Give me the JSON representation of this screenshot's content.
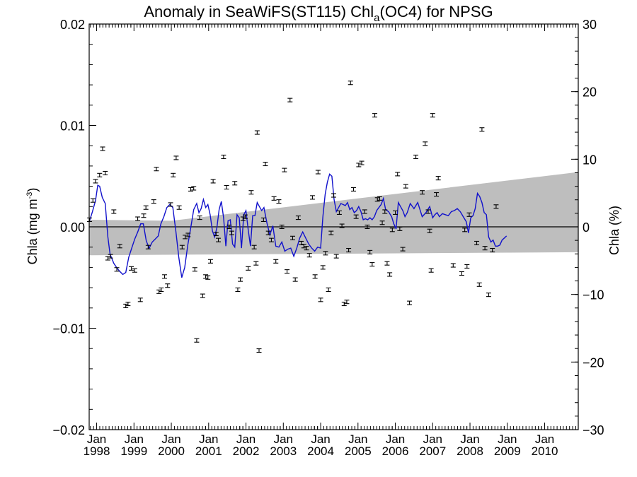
{
  "chart_data": {
    "type": "scatter",
    "title_main": "Anomaly in SeaWiFS(ST115) Chl",
    "title_sub": "a",
    "title_tail": "(OC4) for NPSG",
    "ylabel_left_main": "Chla (mg m",
    "ylabel_left_sup": "-3",
    "ylabel_left_close": ")",
    "ylabel_right": "Chla (%)",
    "ylim_left": [
      -0.02,
      0.02
    ],
    "ylim_right": [
      -30,
      30
    ],
    "xlim": [
      1997.8,
      2010.9
    ],
    "yticks_left": [
      {
        "v": 0.02,
        "label": "0.02"
      },
      {
        "v": 0.01,
        "label": "0.01"
      },
      {
        "v": 0.0,
        "label": "0.00"
      },
      {
        "v": -0.01,
        "label": "−0.01"
      },
      {
        "v": -0.02,
        "label": "−0.02"
      }
    ],
    "yticks_right": [
      {
        "v": 30,
        "label": "30"
      },
      {
        "v": 20,
        "label": "20"
      },
      {
        "v": 10,
        "label": "10"
      },
      {
        "v": 0,
        "label": "0"
      },
      {
        "v": -10,
        "label": "−10"
      },
      {
        "v": -20,
        "label": "−20"
      },
      {
        "v": -30,
        "label": "−30"
      }
    ],
    "xticks": [
      {
        "v": 1998.0,
        "month": "Jan",
        "year": "1998"
      },
      {
        "v": 1999.0,
        "month": "Jan",
        "year": "1999"
      },
      {
        "v": 2000.0,
        "month": "Jan",
        "year": "2000"
      },
      {
        "v": 2001.0,
        "month": "Jan",
        "year": "2001"
      },
      {
        "v": 2002.0,
        "month": "Jan",
        "year": "2002"
      },
      {
        "v": 2003.0,
        "month": "Jan",
        "year": "2003"
      },
      {
        "v": 2004.0,
        "month": "Jan",
        "year": "2004"
      },
      {
        "v": 2005.0,
        "month": "Jan",
        "year": "2005"
      },
      {
        "v": 2006.0,
        "month": "Jan",
        "year": "2006"
      },
      {
        "v": 2007.0,
        "month": "Jan",
        "year": "2007"
      },
      {
        "v": 2008.0,
        "month": "Jan",
        "year": "2008"
      },
      {
        "v": 2009.0,
        "month": "Jan",
        "year": "2009"
      },
      {
        "v": 2010.0,
        "month": "Jan",
        "year": "2010"
      }
    ],
    "colors": {
      "line": "#1111cc",
      "band": "#bebebe",
      "points": "#000000"
    },
    "band": {
      "upper": [
        [
          1997.8,
          0.0007
        ],
        [
          2000.0,
          0.0006
        ],
        [
          2010.9,
          0.0054
        ]
      ],
      "lower": [
        [
          1997.8,
          -0.0028
        ],
        [
          2010.9,
          -0.0025
        ]
      ]
    },
    "points": [
      [
        1997.81,
        0.0007
      ],
      [
        1997.9,
        0.0026
      ],
      [
        1997.97,
        0.0045
      ],
      [
        1998.08,
        0.0051
      ],
      [
        1998.16,
        0.0077
      ],
      [
        1998.23,
        0.0053
      ],
      [
        1998.3,
        -0.0031
      ],
      [
        1998.37,
        -0.0029
      ],
      [
        1998.46,
        0.0015
      ],
      [
        1998.54,
        -0.0042
      ],
      [
        1998.62,
        -0.0019
      ],
      [
        1998.78,
        -0.0078
      ],
      [
        1998.84,
        -0.0076
      ],
      [
        1998.93,
        -0.0041
      ],
      [
        1999.02,
        -0.0043
      ],
      [
        1999.1,
        0.0008
      ],
      [
        1999.17,
        -0.0072
      ],
      [
        1999.26,
        0.0011
      ],
      [
        1999.32,
        0.0019
      ],
      [
        1999.38,
        -0.002
      ],
      [
        1999.53,
        0.0025
      ],
      [
        1999.6,
        0.0057
      ],
      [
        1999.67,
        -0.0064
      ],
      [
        1999.73,
        -0.0062
      ],
      [
        1999.82,
        -0.0049
      ],
      [
        1999.9,
        -0.0058
      ],
      [
        1999.98,
        0.0022
      ],
      [
        2000.05,
        0.0051
      ],
      [
        2000.13,
        0.0068
      ],
      [
        2000.21,
        0.0019
      ],
      [
        2000.29,
        -0.002
      ],
      [
        2000.37,
        -0.001
      ],
      [
        2000.45,
        -0.0008
      ],
      [
        2000.52,
        0.0037
      ],
      [
        2000.6,
        0.0038
      ],
      [
        2000.63,
        -0.0042
      ],
      [
        2000.68,
        -0.0112
      ],
      [
        2000.76,
        0.0009
      ],
      [
        2000.84,
        -0.0068
      ],
      [
        2000.92,
        -0.0049
      ],
      [
        2000.98,
        -0.005
      ],
      [
        2001.05,
        -0.0034
      ],
      [
        2001.12,
        0.0045
      ],
      [
        2001.2,
        -0.0007
      ],
      [
        2001.26,
        -0.0013
      ],
      [
        2001.4,
        0.0069
      ],
      [
        2001.48,
        0.0039
      ],
      [
        2001.55,
        0.0
      ],
      [
        2001.62,
        -0.0006
      ],
      [
        2001.7,
        0.0043
      ],
      [
        2001.78,
        -0.0062
      ],
      [
        2001.85,
        -0.0052
      ],
      [
        2001.92,
        0.0008
      ],
      [
        2001.98,
        0.001
      ],
      [
        2002.06,
        -0.0041
      ],
      [
        2002.14,
        0.0034
      ],
      [
        2002.22,
        -0.002
      ],
      [
        2002.27,
        -0.0036
      ],
      [
        2002.3,
        0.0093
      ],
      [
        2002.35,
        -0.0122
      ],
      [
        2002.47,
        0.0007
      ],
      [
        2002.52,
        0.0062
      ],
      [
        2002.6,
        -0.0006
      ],
      [
        2002.68,
        -0.0013
      ],
      [
        2002.75,
        0.0028
      ],
      [
        2002.8,
        -0.0034
      ],
      [
        2002.88,
        0.0025
      ],
      [
        2002.96,
        0.0
      ],
      [
        2003.03,
        0.0056
      ],
      [
        2003.1,
        -0.0044
      ],
      [
        2003.18,
        0.0125
      ],
      [
        2003.25,
        -0.0011
      ],
      [
        2003.32,
        -0.0052
      ],
      [
        2003.4,
        0.0009
      ],
      [
        2003.48,
        -0.0016
      ],
      [
        2003.55,
        -0.0019
      ],
      [
        2003.62,
        -0.0021
      ],
      [
        2003.7,
        -0.0028
      ],
      [
        2003.78,
        0.0029
      ],
      [
        2003.85,
        -0.0049
      ],
      [
        2003.93,
        0.0054
      ],
      [
        2004.0,
        -0.0072
      ],
      [
        2004.06,
        -0.004
      ],
      [
        2004.13,
        -0.0026
      ],
      [
        2004.21,
        -0.0062
      ],
      [
        2004.28,
        -0.0006
      ],
      [
        2004.35,
        0.0031
      ],
      [
        2004.42,
        -0.0029
      ],
      [
        2004.5,
        0.0014
      ],
      [
        2004.57,
        0.0001
      ],
      [
        2004.63,
        -0.0076
      ],
      [
        2004.7,
        -0.0074
      ],
      [
        2004.75,
        -0.0023
      ],
      [
        2004.8,
        0.0142
      ],
      [
        2004.88,
        0.0037
      ],
      [
        2004.95,
        0.001
      ],
      [
        2005.02,
        0.0061
      ],
      [
        2005.1,
        0.0063
      ],
      [
        2005.18,
        0.0015
      ],
      [
        2005.25,
        0.0
      ],
      [
        2005.32,
        -0.0025
      ],
      [
        2005.38,
        -0.0037
      ],
      [
        2005.45,
        0.011
      ],
      [
        2005.52,
        0.0027
      ],
      [
        2005.58,
        0.0028
      ],
      [
        2005.65,
        0.0004
      ],
      [
        2005.72,
        0.0015
      ],
      [
        2005.78,
        -0.0036
      ],
      [
        2005.85,
        -0.0047
      ],
      [
        2005.92,
        -0.0003
      ],
      [
        2006.0,
        0.0014
      ],
      [
        2006.06,
        0.0052
      ],
      [
        2006.12,
        -0.0002
      ],
      [
        2006.2,
        -0.0022
      ],
      [
        2006.28,
        0.004
      ],
      [
        2006.38,
        -0.0075
      ],
      [
        2006.55,
        0.0069
      ],
      [
        2006.72,
        0.0034
      ],
      [
        2006.8,
        0.0082
      ],
      [
        2006.88,
        0.0015
      ],
      [
        2006.92,
        -0.0004
      ],
      [
        2006.96,
        -0.0043
      ],
      [
        2007.0,
        0.011
      ],
      [
        2007.1,
        0.0032
      ],
      [
        2007.15,
        0.0048
      ],
      [
        2007.55,
        -0.0038
      ],
      [
        2007.78,
        -0.0046
      ],
      [
        2007.86,
        -0.0003
      ],
      [
        2007.92,
        -0.0039
      ],
      [
        2007.98,
        0.0012
      ],
      [
        2008.18,
        -0.0016
      ],
      [
        2008.25,
        -0.0057
      ],
      [
        2008.32,
        0.0096
      ],
      [
        2008.4,
        -0.0021
      ],
      [
        2008.5,
        -0.0067
      ],
      [
        2008.6,
        -0.0023
      ],
      [
        2008.7,
        0.002
      ]
    ],
    "line": [
      [
        1997.8,
        0.0005
      ],
      [
        1997.88,
        0.0014
      ],
      [
        1997.97,
        0.0026
      ],
      [
        1998.03,
        0.0041
      ],
      [
        1998.08,
        0.004
      ],
      [
        1998.15,
        0.0029
      ],
      [
        1998.23,
        0.0023
      ],
      [
        1998.3,
        -0.001
      ],
      [
        1998.36,
        -0.0027
      ],
      [
        1998.46,
        -0.0036
      ],
      [
        1998.55,
        -0.0041
      ],
      [
        1998.62,
        -0.0044
      ],
      [
        1998.7,
        -0.0047
      ],
      [
        1998.78,
        -0.0045
      ],
      [
        1998.86,
        -0.003
      ],
      [
        1998.94,
        -0.0021
      ],
      [
        1999.02,
        -0.0012
      ],
      [
        1999.1,
        -0.0005
      ],
      [
        1999.18,
        0.0003
      ],
      [
        1999.25,
        0.0003
      ],
      [
        1999.33,
        -0.0014
      ],
      [
        1999.41,
        -0.0021
      ],
      [
        1999.49,
        -0.0015
      ],
      [
        1999.57,
        -0.0012
      ],
      [
        1999.65,
        -0.0009
      ],
      [
        1999.72,
        0.0003
      ],
      [
        1999.8,
        0.001
      ],
      [
        1999.88,
        0.0019
      ],
      [
        1999.96,
        0.0022
      ],
      [
        2000.04,
        0.0019
      ],
      [
        2000.12,
        -0.0004
      ],
      [
        2000.2,
        -0.003
      ],
      [
        2000.28,
        -0.005
      ],
      [
        2000.36,
        -0.004
      ],
      [
        2000.44,
        -0.0018
      ],
      [
        2000.52,
        -0.0001
      ],
      [
        2000.6,
        0.0017
      ],
      [
        2000.68,
        0.0023
      ],
      [
        2000.74,
        0.0014
      ],
      [
        2000.8,
        0.0018
      ],
      [
        2000.86,
        0.0027
      ],
      [
        2000.92,
        0.0019
      ],
      [
        2000.98,
        0.0022
      ],
      [
        2001.04,
        0.0012
      ],
      [
        2001.1,
        -0.0004
      ],
      [
        2001.16,
        -0.001
      ],
      [
        2001.22,
        -0.0001
      ],
      [
        2001.28,
        0.0017
      ],
      [
        2001.34,
        0.0025
      ],
      [
        2001.4,
        0.0009
      ],
      [
        2001.46,
        -0.0019
      ],
      [
        2001.52,
        0.0006
      ],
      [
        2001.58,
        0.0007
      ],
      [
        2001.64,
        -0.0017
      ],
      [
        2001.7,
        -0.002
      ],
      [
        2001.76,
        0.0012
      ],
      [
        2001.82,
        0.0009
      ],
      [
        2001.88,
        -0.0021
      ],
      [
        2001.94,
        0.0012
      ],
      [
        2002.0,
        0.0016
      ],
      [
        2002.06,
        -0.0003
      ],
      [
        2002.12,
        -0.0019
      ],
      [
        2002.18,
        0.0011
      ],
      [
        2002.24,
        0.0011
      ],
      [
        2002.3,
        0.0024
      ],
      [
        2002.36,
        0.002
      ],
      [
        2002.42,
        0.0016
      ],
      [
        2002.48,
        0.0019
      ],
      [
        2002.56,
        0.0004
      ],
      [
        2002.64,
        -0.0008
      ],
      [
        2002.72,
        0.0001
      ],
      [
        2002.8,
        -0.0019
      ],
      [
        2002.88,
        -0.002
      ],
      [
        2002.96,
        -0.0015
      ],
      [
        2003.04,
        -0.0024
      ],
      [
        2003.12,
        -0.0022
      ],
      [
        2003.2,
        -0.0021
      ],
      [
        2003.28,
        -0.0029
      ],
      [
        2003.36,
        -0.0021
      ],
      [
        2003.44,
        -0.0011
      ],
      [
        2003.52,
        -0.0005
      ],
      [
        2003.6,
        -0.0011
      ],
      [
        2003.68,
        -0.0017
      ],
      [
        2003.76,
        -0.0021
      ],
      [
        2003.84,
        -0.0024
      ],
      [
        2003.92,
        -0.002
      ],
      [
        2004.0,
        -0.0021
      ],
      [
        2004.06,
        0.001
      ],
      [
        2004.12,
        0.0032
      ],
      [
        2004.18,
        0.0044
      ],
      [
        2004.24,
        0.0052
      ],
      [
        2004.3,
        0.005
      ],
      [
        2004.36,
        0.0027
      ],
      [
        2004.42,
        0.0015
      ],
      [
        2004.48,
        0.0019
      ],
      [
        2004.54,
        0.0023
      ],
      [
        2004.6,
        0.0022
      ],
      [
        2004.66,
        0.0021
      ],
      [
        2004.72,
        0.0024
      ],
      [
        2004.78,
        0.0017
      ],
      [
        2004.84,
        0.0019
      ],
      [
        2004.9,
        0.0014
      ],
      [
        2004.96,
        0.0016
      ],
      [
        2005.02,
        0.002
      ],
      [
        2005.08,
        0.0015
      ],
      [
        2005.14,
        0.0007
      ],
      [
        2005.2,
        0.0008
      ],
      [
        2005.26,
        0.0007
      ],
      [
        2005.32,
        0.0009
      ],
      [
        2005.38,
        0.0007
      ],
      [
        2005.44,
        0.001
      ],
      [
        2005.5,
        0.0016
      ],
      [
        2005.56,
        0.0019
      ],
      [
        2005.62,
        0.0022
      ],
      [
        2005.68,
        0.0028
      ],
      [
        2005.74,
        0.0017
      ],
      [
        2005.82,
        0.0015
      ],
      [
        2005.9,
        0.001
      ],
      [
        2005.96,
        0.0003
      ],
      [
        2006.02,
        -0.0002
      ],
      [
        2006.08,
        0.0024
      ],
      [
        2006.14,
        0.002
      ],
      [
        2006.2,
        0.0016
      ],
      [
        2006.26,
        0.001
      ],
      [
        2006.32,
        0.0014
      ],
      [
        2006.4,
        0.0023
      ],
      [
        2006.5,
        0.0018
      ],
      [
        2006.6,
        0.0024
      ],
      [
        2006.72,
        0.001
      ],
      [
        2006.82,
        0.0014
      ],
      [
        2006.92,
        0.002
      ],
      [
        2007.0,
        0.0009
      ],
      [
        2007.06,
        0.0012
      ],
      [
        2007.12,
        0.0014
      ],
      [
        2007.18,
        0.001
      ],
      [
        2007.26,
        0.0013
      ],
      [
        2007.34,
        0.0012
      ],
      [
        2007.42,
        0.0011
      ],
      [
        2007.5,
        0.0015
      ],
      [
        2007.58,
        0.0016
      ],
      [
        2007.66,
        0.0018
      ],
      [
        2007.74,
        0.0015
      ],
      [
        2007.82,
        0.001
      ],
      [
        2007.9,
        0.0005
      ],
      [
        2007.96,
        -0.0006
      ],
      [
        2008.02,
        0.0009
      ],
      [
        2008.08,
        0.0011
      ],
      [
        2008.14,
        0.0018
      ],
      [
        2008.2,
        0.0033
      ],
      [
        2008.26,
        0.003
      ],
      [
        2008.32,
        0.0024
      ],
      [
        2008.38,
        0.0014
      ],
      [
        2008.44,
        0.0012
      ],
      [
        2008.5,
        -0.001
      ],
      [
        2008.56,
        -0.0015
      ],
      [
        2008.62,
        -0.0013
      ],
      [
        2008.68,
        -0.0019
      ],
      [
        2008.74,
        -0.0019
      ],
      [
        2008.8,
        -0.0018
      ],
      [
        2008.86,
        -0.0013
      ],
      [
        2008.92,
        -0.0011
      ],
      [
        2008.98,
        -0.0009
      ]
    ]
  }
}
